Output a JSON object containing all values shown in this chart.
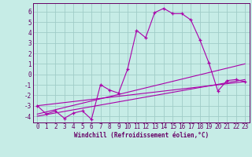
{
  "xlabel": "Windchill (Refroidissement éolien,°C)",
  "bg_color": "#c6ece6",
  "grid_color": "#a0ccc8",
  "line_color": "#aa00aa",
  "spine_color": "#660066",
  "xlim": [
    -0.5,
    23.5
  ],
  "ylim": [
    -4.6,
    6.8
  ],
  "yticks": [
    -4,
    -3,
    -2,
    -1,
    0,
    1,
    2,
    3,
    4,
    5,
    6
  ],
  "xticks": [
    0,
    1,
    2,
    3,
    4,
    5,
    6,
    7,
    8,
    9,
    10,
    11,
    12,
    13,
    14,
    15,
    16,
    17,
    18,
    19,
    20,
    21,
    22,
    23
  ],
  "jagged_x": [
    0,
    1,
    2,
    3,
    4,
    5,
    6,
    7,
    8,
    9,
    10,
    11,
    12,
    13,
    14,
    15,
    16,
    17,
    18,
    19,
    20,
    21,
    22,
    23
  ],
  "jagged_y": [
    -3.0,
    -3.8,
    -3.5,
    -4.2,
    -3.7,
    -3.5,
    -4.3,
    -1.0,
    -1.5,
    -1.8,
    0.5,
    4.2,
    3.5,
    5.9,
    6.3,
    5.8,
    5.8,
    5.2,
    3.3,
    1.1,
    -1.6,
    -0.6,
    -0.5,
    -0.7
  ],
  "line2_x": [
    0,
    23
  ],
  "line2_y": [
    -3.0,
    -0.7
  ],
  "line3_x": [
    0,
    23
  ],
  "line3_y": [
    -3.8,
    1.0
  ],
  "line4_x": [
    0,
    23
  ],
  "line4_y": [
    -4.0,
    -0.5
  ],
  "tick_fontsize": 5.5,
  "xlabel_fontsize": 5.5
}
